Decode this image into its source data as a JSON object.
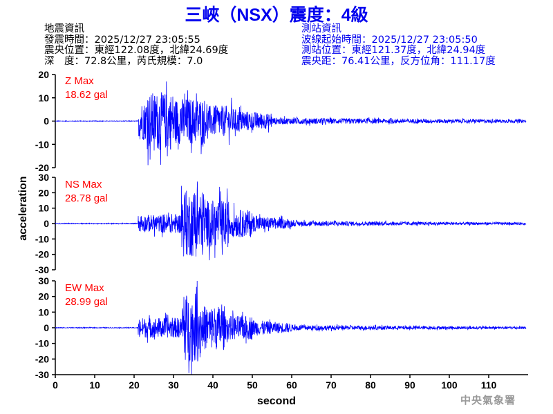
{
  "title": "三峽（NSX）震度：4級",
  "earthquake_info": {
    "heading": "地震資訊",
    "time": "發震時間：2025/12/27 23:05:55",
    "epicenter": "震央位置：東經122.08度，北緯24.69度",
    "depth_magnitude": "深　度：72.8公里，芮氏規模：7.0"
  },
  "station_info": {
    "heading": "測站資訊",
    "wave_start": "波線起始時間：2025/12/27 23:05:50",
    "location": "測站位置：東經121.37度，北緯24.94度",
    "distance": "震央距：76.41公里，反方位角：111.17度"
  },
  "footer": "中央氣象署",
  "chart_data": {
    "type": "line",
    "xlabel": "second",
    "ylabel": "acceleration",
    "xlim": [
      0,
      120
    ],
    "x_ticks": [
      "0",
      "10",
      "20",
      "30",
      "40",
      "50",
      "60",
      "70",
      "80",
      "90",
      "100",
      "110"
    ],
    "line_color": "#0000ff",
    "label_color": "#ff0000",
    "panels": [
      {
        "name": "Z Max",
        "max": "18.62 gal",
        "ylim": [
          -20,
          20
        ],
        "y_ticks": [
          "20",
          "10",
          "0",
          "-10",
          "-20"
        ],
        "peak": 18.62
      },
      {
        "name": "NS Max",
        "max": "28.78 gal",
        "ylim": [
          -30,
          30
        ],
        "y_ticks": [
          "30",
          "20",
          "10",
          "0",
          "-10",
          "-20",
          "-30"
        ],
        "peak": 28.78
      },
      {
        "name": "EW Max",
        "max": "28.99 gal",
        "ylim": [
          -30,
          30
        ],
        "y_ticks": [
          "30",
          "20",
          "10",
          "0",
          "-10",
          "-20",
          "-30"
        ],
        "peak": 28.99
      }
    ]
  }
}
